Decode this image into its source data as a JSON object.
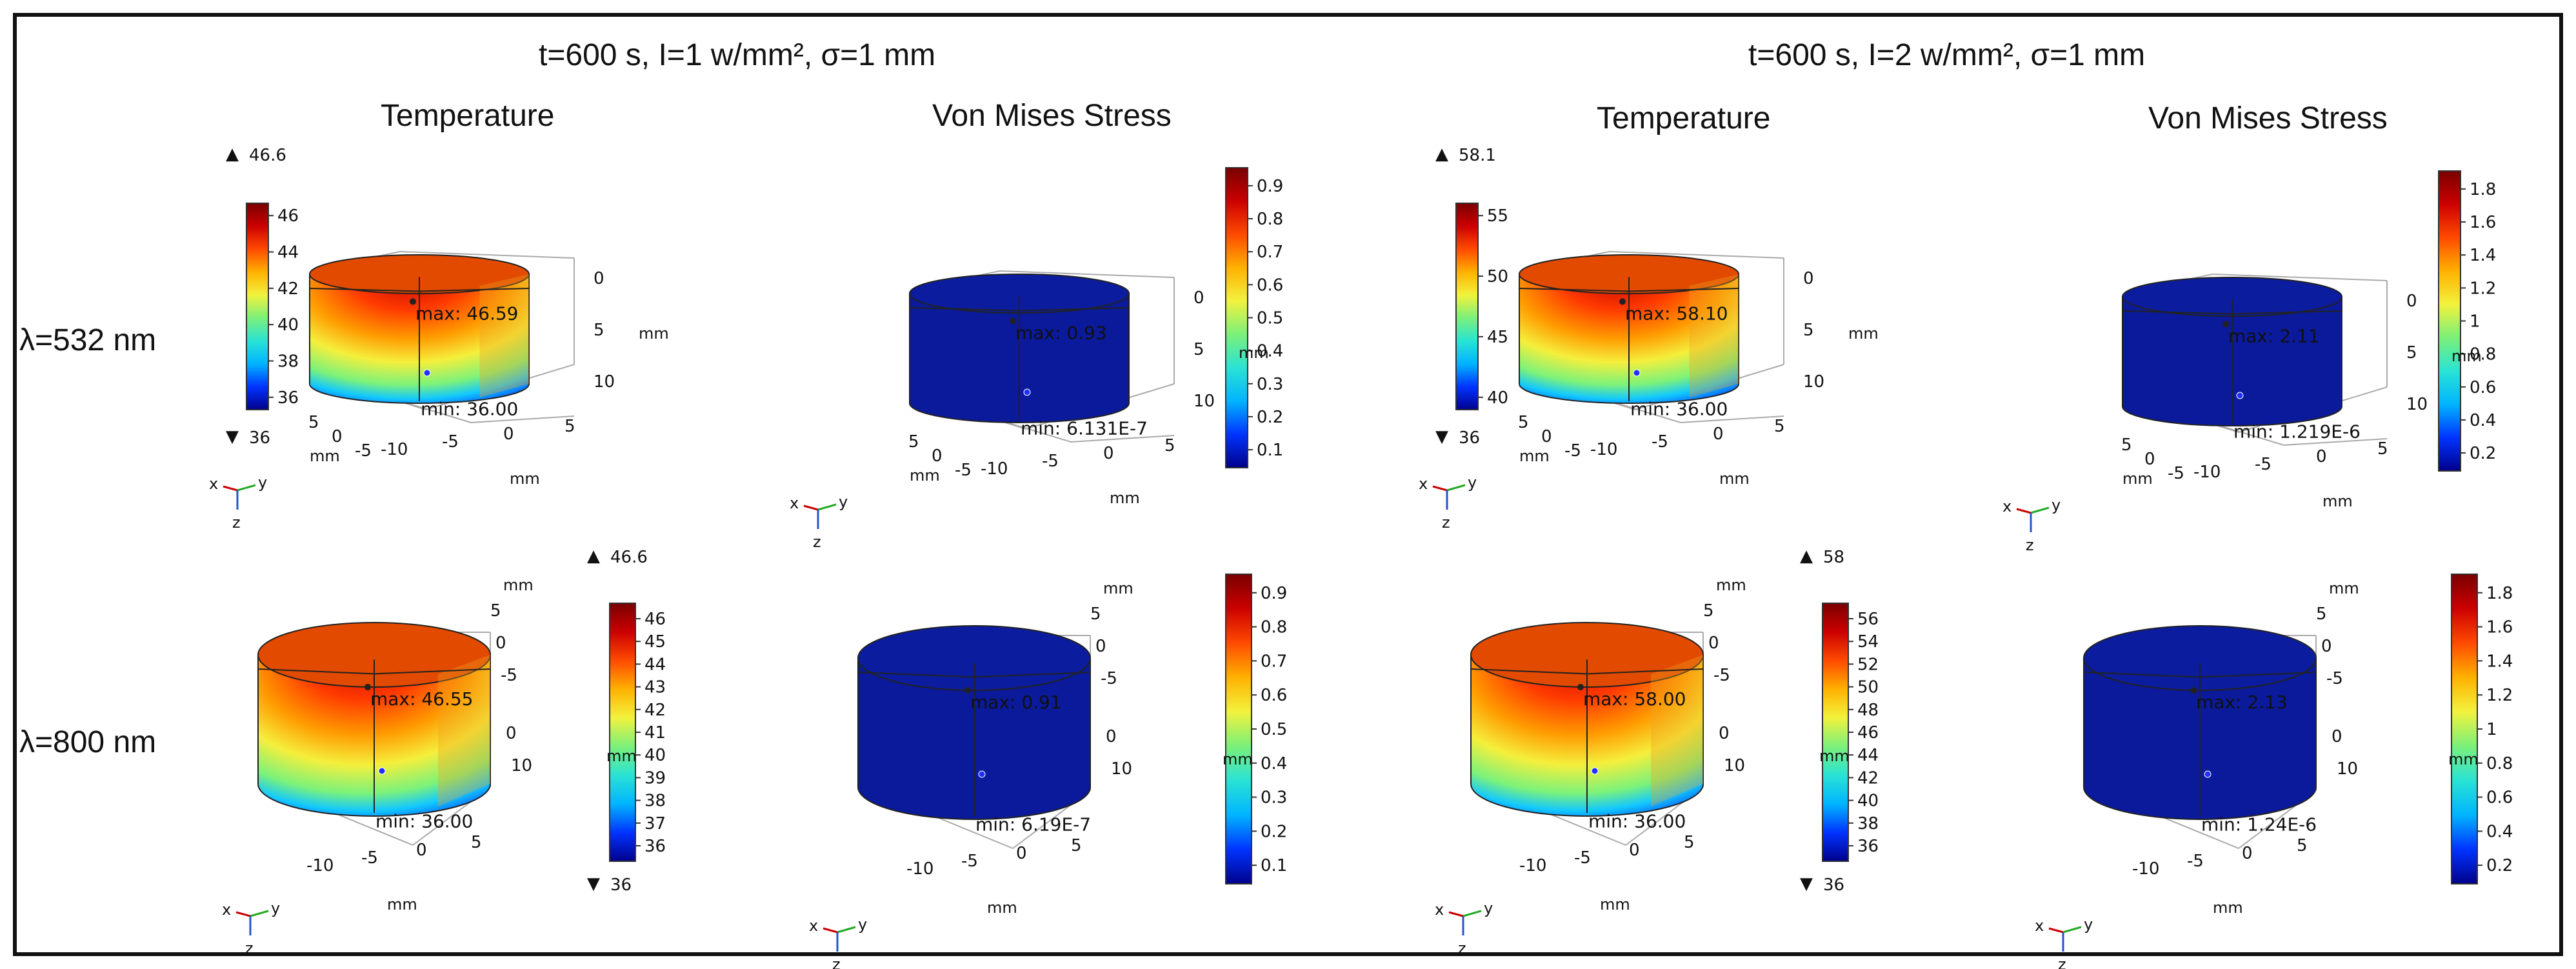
{
  "conditions": [
    "t=600 s, I=1 w/mm², σ=1 mm",
    "t=600 s, I=2 w/mm², σ=1 mm"
  ],
  "panel_titles": {
    "temperature": "Temperature",
    "stress": "Von Mises Stress"
  },
  "row_labels": [
    "λ=532 nm",
    "λ=800 nm"
  ],
  "colors": {
    "frame": "#111111",
    "colormap": [
      "#00008b",
      "#0033ff",
      "#00b4ff",
      "#29e3d4",
      "#7bf07a",
      "#f2f23d",
      "#ffb000",
      "#ff4a00",
      "#cc0000",
      "#7a0000"
    ],
    "stress_body": "#0a1a9a",
    "axis_x": "#cc0000",
    "axis_y": "#22aa22",
    "axis_z": "#2255cc"
  },
  "icons": {
    "triangle_up": "▲",
    "triangle_down": "▼"
  },
  "triad": {
    "x": "x",
    "y": "y",
    "z": "z"
  },
  "panels": [
    {
      "id": "t532_I1",
      "kind": "temperature",
      "range_max": "46.6",
      "range_min": "36",
      "colorbar_ticks": [
        "46",
        "44",
        "42",
        "40",
        "38",
        "36"
      ],
      "max_label": "max: 46.59",
      "min_label": "min: 36.00",
      "axis_depth": [
        "0",
        "5",
        "10"
      ],
      "axis_a": [
        "5",
        "0",
        "-5"
      ],
      "axis_b": [
        "-10",
        "-5",
        "0",
        "5"
      ],
      "unit": "mm"
    },
    {
      "id": "s532_I1",
      "kind": "stress",
      "colorbar_ticks": [
        "0.9",
        "0.8",
        "0.7",
        "0.6",
        "0.5",
        "0.4",
        "0.3",
        "0.2",
        "0.1"
      ],
      "max_label": "max: 0.93",
      "min_label": "min: 6.131E-7",
      "axis_depth": [
        "0",
        "5",
        "10"
      ],
      "axis_a": [
        "5",
        "0",
        "-5"
      ],
      "axis_b": [
        "-10",
        "-5",
        "0",
        "5"
      ],
      "unit": "mm"
    },
    {
      "id": "t532_I2",
      "kind": "temperature",
      "range_max": "58.1",
      "range_min": "36",
      "colorbar_ticks": [
        "55",
        "50",
        "45",
        "40"
      ],
      "max_label": "max: 58.10",
      "min_label": "min: 36.00",
      "axis_depth": [
        "0",
        "5",
        "10"
      ],
      "axis_a": [
        "5",
        "0",
        "-5"
      ],
      "axis_b": [
        "-10",
        "-5",
        "0",
        "5"
      ],
      "unit": "mm"
    },
    {
      "id": "s532_I2",
      "kind": "stress",
      "colorbar_ticks": [
        "1.8",
        "1.6",
        "1.4",
        "1.2",
        "1",
        "0.8",
        "0.6",
        "0.4",
        "0.2"
      ],
      "max_label": "max: 2.11",
      "min_label": "min: 1.219E-6",
      "axis_depth": [
        "0",
        "5",
        "10"
      ],
      "axis_a": [
        "5",
        "0",
        "-5"
      ],
      "axis_b": [
        "-10",
        "-5",
        "0",
        "5"
      ],
      "unit": "mm"
    },
    {
      "id": "t800_I1",
      "kind": "temperature",
      "range_max": "46.6",
      "range_min": "36",
      "colorbar_ticks": [
        "46",
        "45",
        "44",
        "43",
        "42",
        "41",
        "40",
        "39",
        "38",
        "37",
        "36"
      ],
      "max_label": "max: 46.55",
      "min_label": "min: 36.00",
      "axis_depth": [
        "5",
        "0",
        "-5",
        "0",
        "10"
      ],
      "axis_a": [
        "-10",
        "-5",
        "0",
        "5"
      ],
      "axis_b": [],
      "unit": "mm"
    },
    {
      "id": "s800_I1",
      "kind": "stress",
      "colorbar_ticks": [
        "0.9",
        "0.8",
        "0.7",
        "0.6",
        "0.5",
        "0.4",
        "0.3",
        "0.2",
        "0.1"
      ],
      "max_label": "max: 0.91",
      "min_label": "min: 6.19E-7",
      "axis_depth": [
        "5",
        "0",
        "-5",
        "0",
        "10"
      ],
      "axis_a": [
        "-10",
        "-5",
        "0",
        "5"
      ],
      "axis_b": [],
      "unit": "mm"
    },
    {
      "id": "t800_I2",
      "kind": "temperature",
      "range_max": "58",
      "range_min": "36",
      "colorbar_ticks": [
        "56",
        "54",
        "52",
        "50",
        "48",
        "46",
        "44",
        "42",
        "40",
        "38",
        "36"
      ],
      "max_label": "max: 58.00",
      "min_label": "min: 36.00",
      "axis_depth": [
        "5",
        "0",
        "-5",
        "0",
        "10"
      ],
      "axis_a": [
        "-10",
        "-5",
        "0",
        "5"
      ],
      "axis_b": [],
      "unit": "mm"
    },
    {
      "id": "s800_I2",
      "kind": "stress",
      "colorbar_ticks": [
        "1.8",
        "1.6",
        "1.4",
        "1.2",
        "1",
        "0.8",
        "0.6",
        "0.4",
        "0.2"
      ],
      "max_label": "max: 2.13",
      "min_label": "min: 1.24E-6",
      "axis_depth": [
        "5",
        "0",
        "-5",
        "0",
        "10"
      ],
      "axis_a": [
        "-10",
        "-5",
        "0",
        "5"
      ],
      "axis_b": [],
      "unit": "mm"
    }
  ]
}
